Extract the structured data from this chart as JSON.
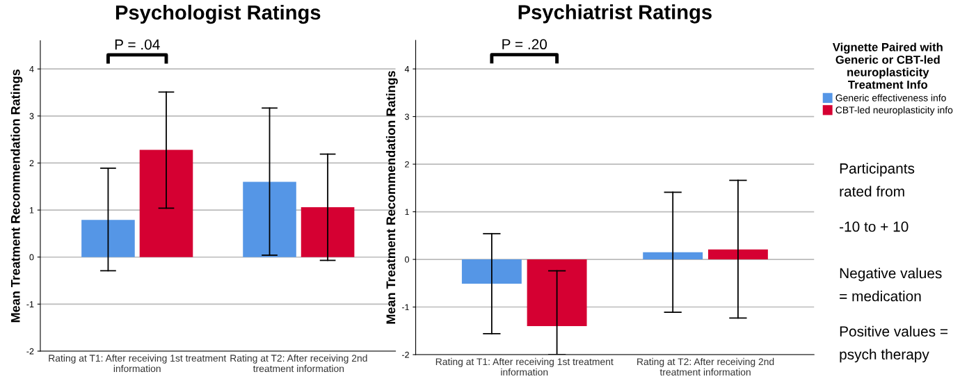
{
  "chart_data": [
    {
      "type": "bar",
      "title": "Psychologist Ratings",
      "ylabel": "Mean Treatment Recommendation Ratings",
      "categories": [
        "Rating at T1: After receiving 1st treatment\ninformation",
        "Rating at T2: After receiving 2nd\ntreatment information"
      ],
      "series": [
        {
          "color": "#5596e6",
          "values": [
            0.79,
            1.6
          ],
          "errors": [
            [
              -0.29,
              1.89
            ],
            [
              0.04,
              3.17
            ]
          ]
        },
        {
          "color": "#d50032",
          "values": [
            2.28,
            1.06
          ],
          "errors": [
            [
              1.04,
              3.51
            ],
            [
              -0.07,
              2.19
            ]
          ]
        }
      ],
      "ylim": [
        -2,
        4.6
      ],
      "yticks": [
        -2,
        -1,
        0,
        1,
        2,
        3,
        4
      ],
      "grid": "y",
      "annotations": [
        "P = .04"
      ]
    },
    {
      "type": "bar",
      "title": "Psychiatrist Ratings",
      "ylabel": "Mean Treatment Recommendation Ratings",
      "categories": [
        "Rating at T1: After receiving 1st treatment\ninformation",
        "Rating at T2: After receiving 2nd\ntreatment information"
      ],
      "series": [
        {
          "name": "Generic effectiveness info",
          "color": "#5596e6",
          "values": [
            -0.51,
            0.15
          ],
          "errors": [
            [
              -1.56,
              0.54
            ],
            [
              -1.11,
              1.41
            ]
          ]
        },
        {
          "name": "CBT-led neuroplasticity info",
          "color": "#d50032",
          "values": [
            -1.4,
            0.21
          ],
          "errors": [
            [
              -2.0,
              -0.24
            ],
            [
              -1.23,
              1.66
            ]
          ]
        }
      ],
      "ylim": [
        -2,
        4.6
      ],
      "yticks": [
        -2,
        -1,
        0,
        1,
        2,
        3,
        4
      ],
      "grid": "y",
      "legend": "right",
      "legend_title": "Vignette Paired with\nGeneric or CBT-led\nneuroplasticity\nTreatment Info",
      "annotations": [
        "P = .20",
        "Participants\nrated from",
        "-10 to + 10",
        "Negative values\n= medication",
        "Positive values =\npsych therapy"
      ]
    }
  ]
}
